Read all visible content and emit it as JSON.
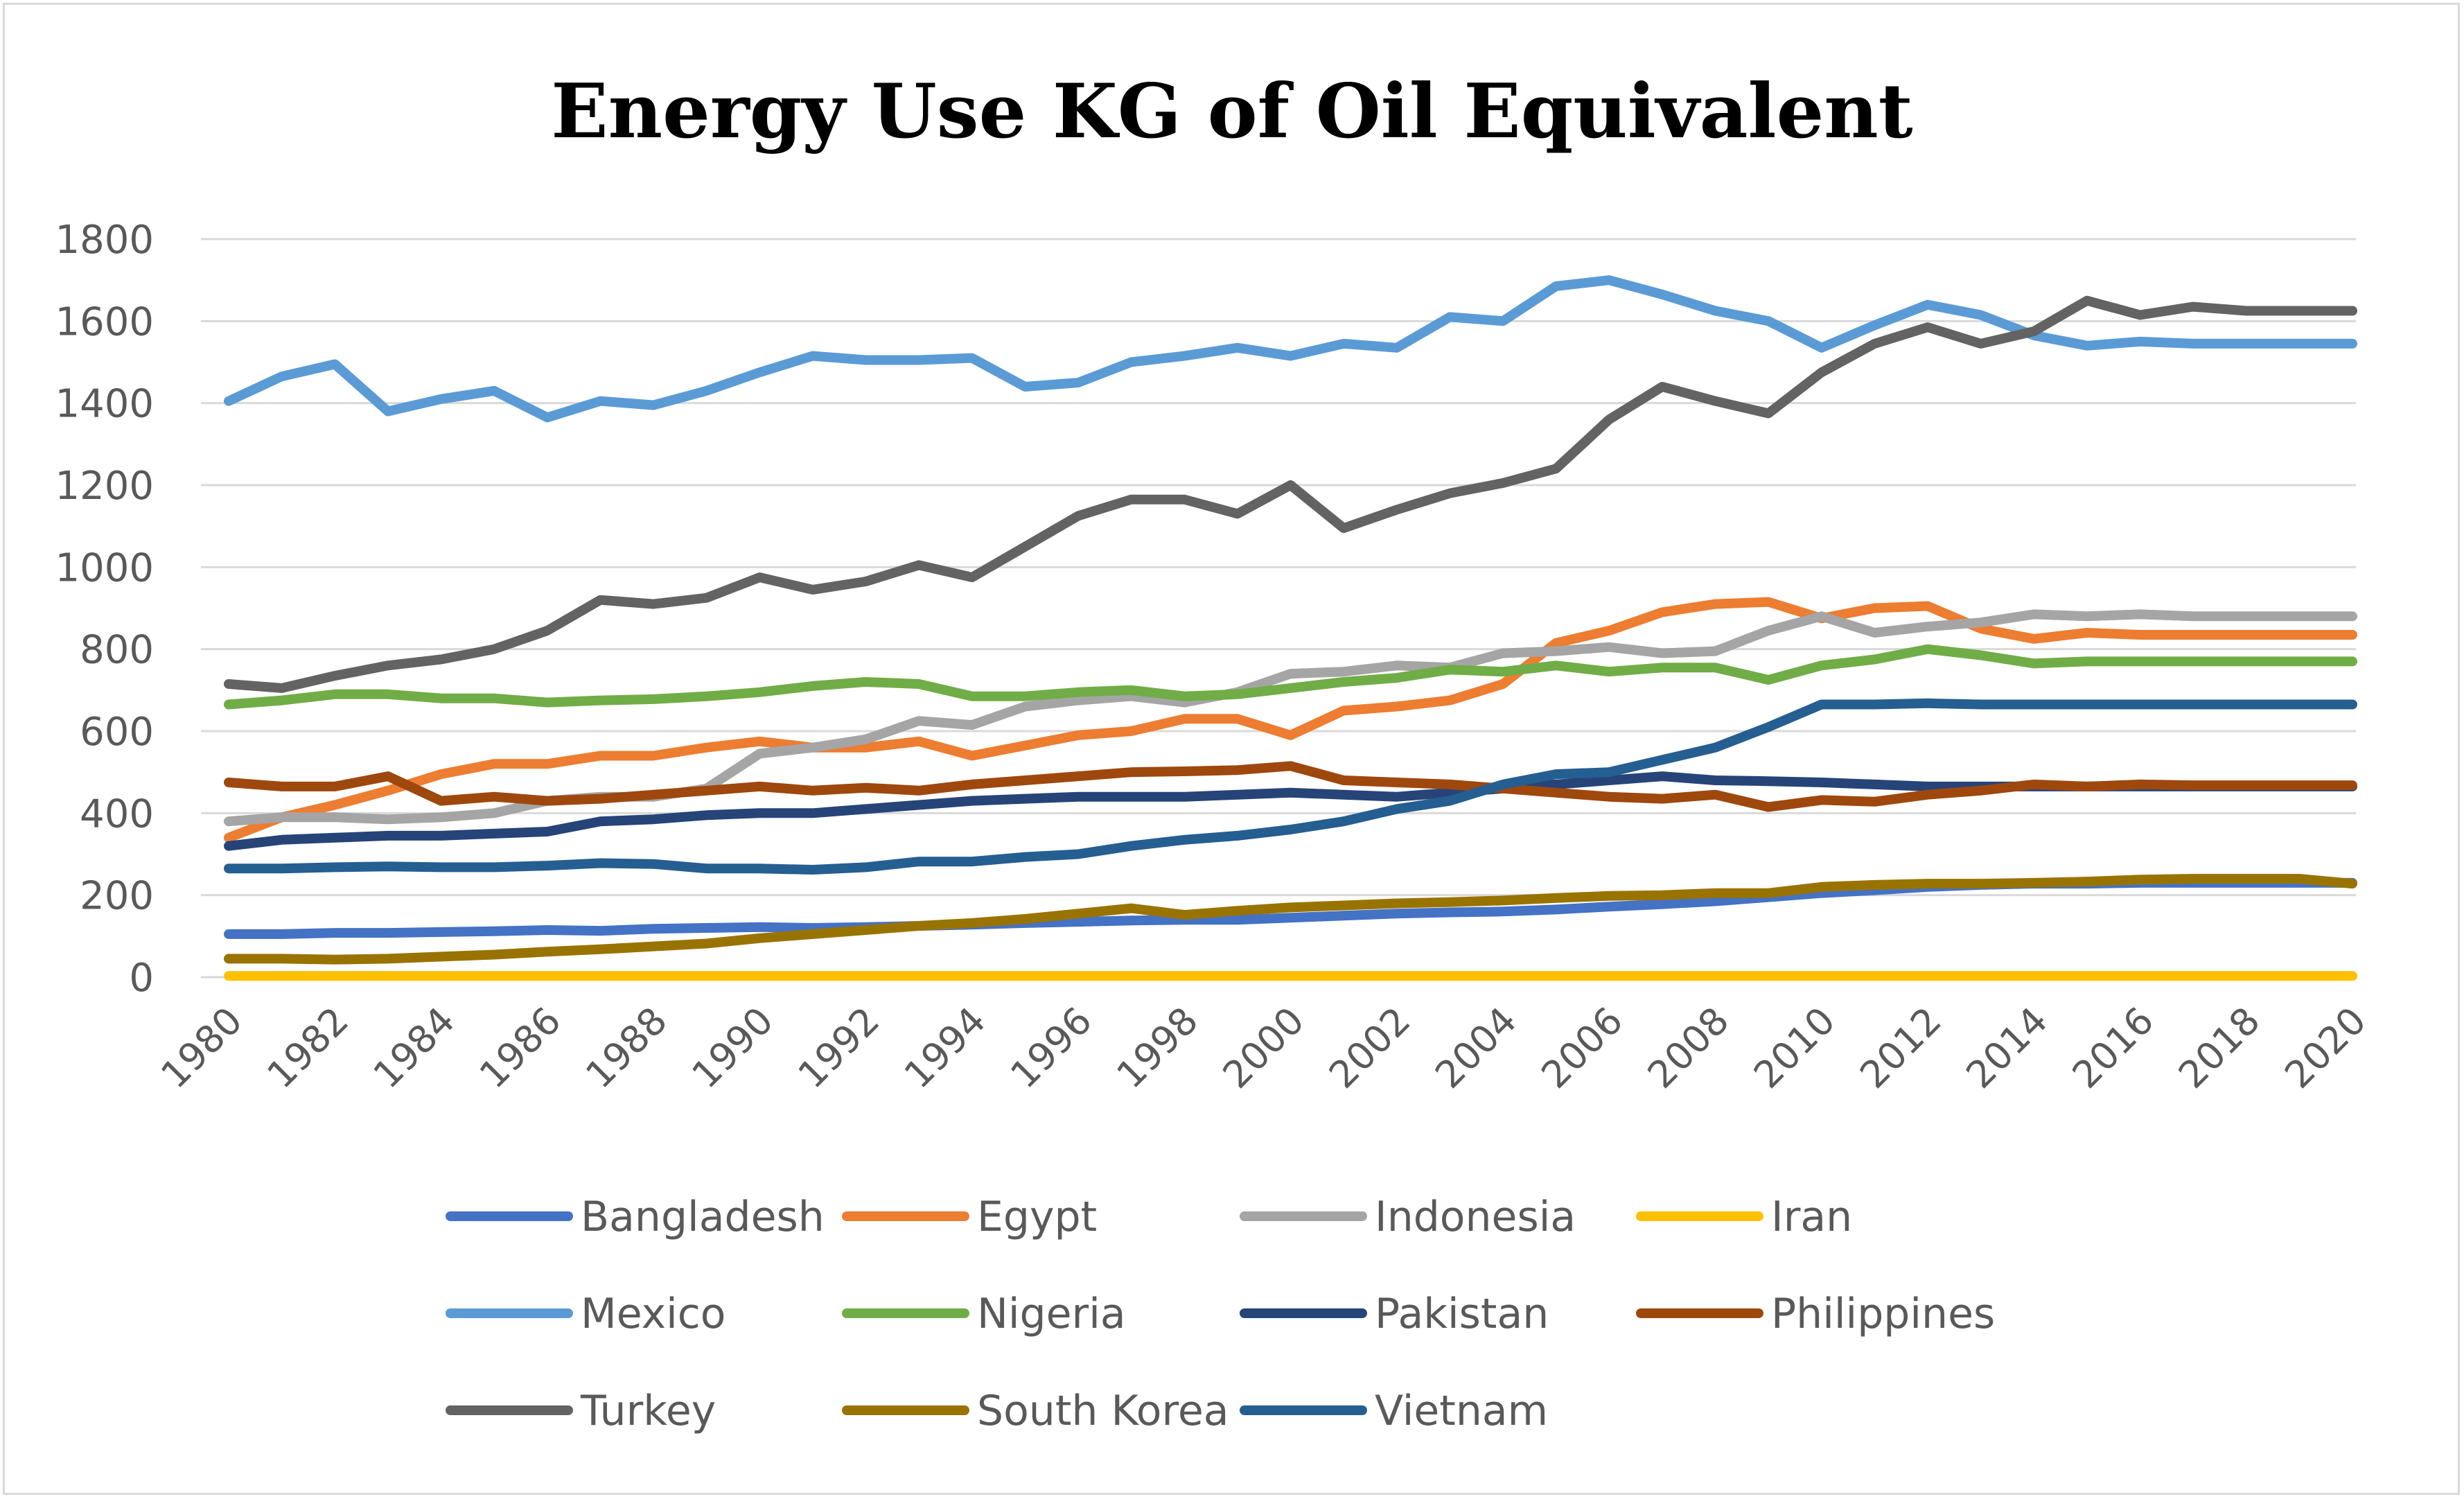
{
  "chart_data": {
    "type": "line",
    "title": "Energy Use KG of Oil Equivalent",
    "xlabel": "",
    "ylabel": "",
    "ylim": [
      0,
      1800
    ],
    "yticks": [
      0,
      200,
      400,
      600,
      800,
      1000,
      1200,
      1400,
      1600,
      1800
    ],
    "x": [
      1980,
      1981,
      1982,
      1983,
      1984,
      1985,
      1986,
      1987,
      1988,
      1989,
      1990,
      1991,
      1992,
      1993,
      1994,
      1995,
      1996,
      1997,
      1998,
      1999,
      2000,
      2001,
      2002,
      2003,
      2004,
      2005,
      2006,
      2007,
      2008,
      2009,
      2010,
      2011,
      2012,
      2013,
      2014,
      2015,
      2016,
      2017,
      2018,
      2019,
      2020
    ],
    "xtick_labels": [
      "1980",
      "1982",
      "1984",
      "1986",
      "1988",
      "1990",
      "1992",
      "1994",
      "1996",
      "1998",
      "2000",
      "2002",
      "2004",
      "2006",
      "2008",
      "2010",
      "2012",
      "2014",
      "2016",
      "2018",
      "2020"
    ],
    "grid": true,
    "legend_position": "bottom",
    "series": [
      {
        "name": "Bangladesh",
        "color": "#4472C4",
        "values": [
          105,
          105,
          108,
          108,
          110,
          112,
          115,
          113,
          118,
          120,
          122,
          120,
          122,
          125,
          128,
          132,
          135,
          138,
          140,
          140,
          145,
          150,
          155,
          158,
          160,
          165,
          172,
          178,
          185,
          195,
          205,
          212,
          220,
          225,
          228,
          228,
          230,
          230,
          230,
          230,
          230
        ]
      },
      {
        "name": "Egypt",
        "color": "#ED7D31",
        "values": [
          340,
          390,
          420,
          455,
          495,
          520,
          520,
          540,
          540,
          560,
          575,
          560,
          560,
          575,
          540,
          565,
          590,
          600,
          630,
          630,
          590,
          650,
          660,
          675,
          715,
          815,
          845,
          890,
          910,
          915,
          875,
          900,
          905,
          850,
          825,
          840,
          835,
          835,
          835,
          835,
          835
        ]
      },
      {
        "name": "Indonesia",
        "color": "#A5A5A5",
        "values": [
          380,
          390,
          390,
          385,
          390,
          400,
          430,
          440,
          440,
          460,
          545,
          560,
          580,
          625,
          615,
          660,
          675,
          685,
          670,
          695,
          740,
          745,
          760,
          755,
          790,
          795,
          805,
          790,
          795,
          845,
          880,
          840,
          855,
          865,
          885,
          880,
          885,
          880,
          880,
          880,
          880
        ]
      },
      {
        "name": "Iran",
        "color": "#FFC000",
        "values": [
          3,
          3,
          3,
          3,
          3,
          3,
          3,
          3,
          3,
          3,
          3,
          3,
          3,
          3,
          3,
          3,
          3,
          3,
          3,
          3,
          3,
          3,
          3,
          3,
          3,
          3,
          3,
          3,
          3,
          3,
          3,
          3,
          3,
          3,
          3,
          3,
          3,
          3,
          3,
          3,
          3
        ]
      },
      {
        "name": "Mexico",
        "color": "#5B9BD5",
        "values": [
          1405,
          1465,
          1495,
          1380,
          1410,
          1430,
          1365,
          1405,
          1395,
          1430,
          1475,
          1515,
          1505,
          1505,
          1510,
          1440,
          1450,
          1500,
          1515,
          1535,
          1515,
          1545,
          1535,
          1610,
          1600,
          1685,
          1700,
          1665,
          1625,
          1600,
          1535,
          1590,
          1640,
          1615,
          1565,
          1540,
          1550,
          1545,
          1545,
          1545,
          1545
        ]
      },
      {
        "name": "Nigeria",
        "color": "#70AD47",
        "values": [
          665,
          675,
          690,
          690,
          680,
          680,
          670,
          675,
          678,
          685,
          695,
          710,
          720,
          715,
          685,
          685,
          695,
          700,
          685,
          690,
          705,
          720,
          730,
          750,
          745,
          760,
          745,
          755,
          755,
          725,
          760,
          775,
          800,
          785,
          765,
          770,
          770,
          770,
          770,
          770,
          770
        ]
      },
      {
        "name": "Pakistan",
        "color": "#264478",
        "values": [
          320,
          335,
          340,
          345,
          345,
          350,
          355,
          380,
          385,
          395,
          400,
          400,
          410,
          420,
          430,
          435,
          440,
          440,
          440,
          445,
          450,
          445,
          440,
          450,
          460,
          470,
          480,
          490,
          480,
          478,
          475,
          470,
          465,
          465,
          465,
          465,
          465,
          465,
          465,
          465,
          465
        ]
      },
      {
        "name": "Philippines",
        "color": "#9E480E",
        "values": [
          475,
          465,
          465,
          490,
          430,
          440,
          430,
          435,
          445,
          455,
          465,
          455,
          462,
          455,
          470,
          480,
          490,
          500,
          502,
          505,
          515,
          480,
          475,
          470,
          460,
          450,
          440,
          435,
          445,
          415,
          432,
          428,
          445,
          455,
          470,
          465,
          470,
          468,
          468,
          468,
          468
        ]
      },
      {
        "name": "Turkey",
        "color": "#636363",
        "values": [
          715,
          705,
          735,
          760,
          775,
          800,
          845,
          920,
          910,
          925,
          975,
          945,
          965,
          1005,
          975,
          1050,
          1125,
          1165,
          1165,
          1130,
          1200,
          1095,
          1140,
          1180,
          1205,
          1240,
          1360,
          1440,
          1405,
          1375,
          1475,
          1545,
          1585,
          1545,
          1575,
          1650,
          1615,
          1635,
          1625,
          1625,
          1625
        ]
      },
      {
        "name": "South Korea",
        "color": "#997300",
        "values": [
          45,
          45,
          43,
          45,
          50,
          55,
          62,
          68,
          75,
          82,
          95,
          105,
          115,
          125,
          132,
          142,
          155,
          168,
          152,
          162,
          170,
          175,
          180,
          183,
          187,
          193,
          198,
          200,
          205,
          205,
          220,
          225,
          228,
          228,
          230,
          233,
          238,
          240,
          240,
          240,
          228
        ]
      },
      {
        "name": "Vietnam",
        "color": "#255E91",
        "values": [
          265,
          265,
          268,
          270,
          268,
          268,
          272,
          278,
          276,
          265,
          265,
          262,
          268,
          282,
          282,
          293,
          300,
          320,
          335,
          345,
          360,
          380,
          410,
          430,
          470,
          495,
          500,
          530,
          560,
          610,
          665,
          665,
          668,
          665,
          665,
          665,
          665,
          665,
          665,
          665,
          665
        ]
      }
    ]
  }
}
